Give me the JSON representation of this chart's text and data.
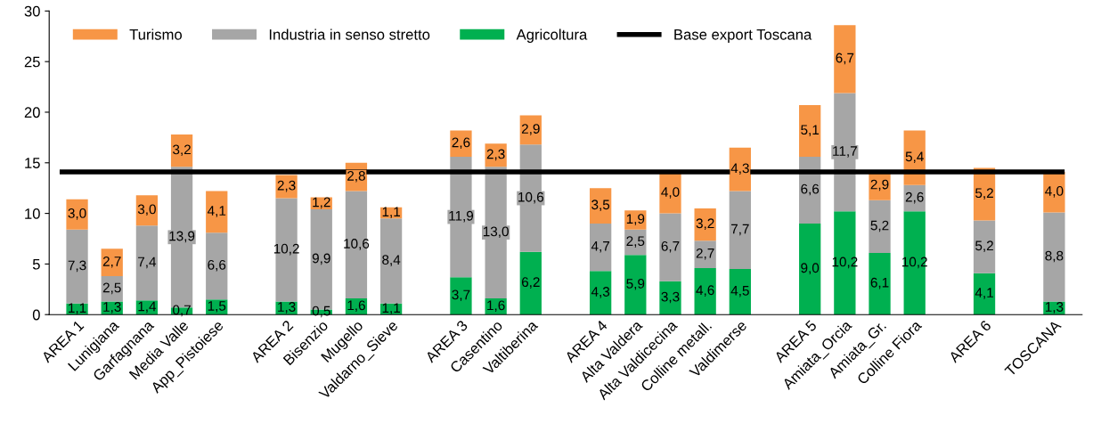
{
  "chart_data": {
    "type": "bar",
    "stacked": true,
    "legend": "top left",
    "grid": false,
    "categories": [
      "AREA 1",
      "Lunigiana",
      "Garfagnana",
      "Media Valle",
      "App_Pistoiese",
      null,
      "AREA 2",
      "Bisenzio",
      "Mugello",
      "Valdarno_Sieve",
      null,
      "AREA 3",
      "Casentino",
      "Valtiberina",
      null,
      "AREA 4",
      "Alta Valdera",
      "Alta Valdicecina",
      "Colline metall.",
      "Valdimerse",
      null,
      "AREA 5",
      "Amiata_Orcia",
      "Amiata_Gr.",
      "Colline Fiora",
      null,
      "AREA 6",
      null,
      "TOSCANA"
    ],
    "series": [
      {
        "name": "Agricoltura",
        "color": "#00b050",
        "values": [
          1.1,
          1.3,
          1.4,
          0.7,
          1.5,
          null,
          1.3,
          0.5,
          1.6,
          1.1,
          null,
          3.7,
          1.6,
          6.2,
          null,
          4.3,
          5.9,
          3.3,
          4.6,
          4.5,
          null,
          9.0,
          10.2,
          6.1,
          10.2,
          null,
          4.1,
          null,
          1.3
        ],
        "value_labels": [
          "1,1",
          "1,3",
          "1,4",
          "0,7",
          "1,5",
          null,
          "1,3",
          "0,5",
          "1,6",
          "1,1",
          null,
          "3,7",
          "1,6",
          "6,2",
          null,
          "4,3",
          "5,9",
          "3,3",
          "4,6",
          "4,5",
          null,
          "9,0",
          "10,2",
          "6,1",
          "10,2",
          null,
          "4,1",
          null,
          "1,3"
        ]
      },
      {
        "name": "Industria in senso stretto",
        "color": "#a6a6a6",
        "values": [
          7.3,
          2.5,
          7.4,
          13.9,
          6.6,
          null,
          10.2,
          9.9,
          10.6,
          8.4,
          null,
          11.9,
          13.0,
          10.6,
          null,
          4.7,
          2.5,
          6.7,
          2.7,
          7.7,
          null,
          6.6,
          11.7,
          5.2,
          2.6,
          null,
          5.2,
          null,
          8.8
        ],
        "value_labels": [
          "7,3",
          "2,5",
          "7,4",
          "13,9",
          "6,6",
          null,
          "10,2",
          "9,9",
          "10,6",
          "8,4",
          null,
          "11,9",
          "13,0",
          "10,6",
          null,
          "4,7",
          "2,5",
          "6,7",
          "2,7",
          "7,7",
          null,
          "6,6",
          "11,7",
          "5,2",
          "2,6",
          null,
          "5,2",
          null,
          "8,8"
        ]
      },
      {
        "name": "Turismo",
        "color": "#f79646",
        "values": [
          3.0,
          2.7,
          3.0,
          3.2,
          4.1,
          null,
          2.3,
          1.2,
          2.8,
          1.1,
          null,
          2.6,
          2.3,
          2.9,
          null,
          3.5,
          1.9,
          4.0,
          3.2,
          4.3,
          null,
          5.1,
          6.7,
          2.9,
          5.4,
          null,
          5.2,
          null,
          4.0
        ],
        "value_labels": [
          "3,0",
          "2,7",
          "3,0",
          "3,2",
          "4,1",
          null,
          "2,3",
          "1,2",
          "2,8",
          "1,1",
          null,
          "2,6",
          "2,3",
          "2,9",
          null,
          "3,5",
          "1,9",
          "4,0",
          "3,2",
          "4,3",
          null,
          "5,1",
          "6,7",
          "2,9",
          "5,4",
          null,
          "5,2",
          null,
          "4,0"
        ]
      }
    ],
    "ref_lines": [
      {
        "axis": "y",
        "value": 14.1,
        "label": "Base export Toscana",
        "color": "#000000",
        "line_style": "solid"
      }
    ],
    "ylim": [
      0,
      30
    ],
    "yticks": [
      0,
      5,
      10,
      15,
      20,
      25,
      30
    ]
  }
}
